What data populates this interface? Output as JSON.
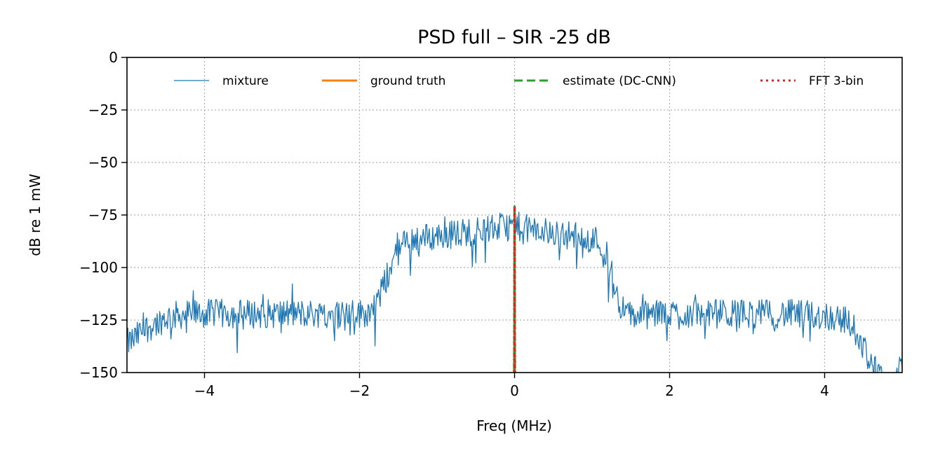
{
  "chart_data": {
    "type": "line",
    "title": "PSD full – SIR -25 dB",
    "xlabel": "Freq (MHz)",
    "ylabel": "dB re 1 mW",
    "xlim": [
      -5,
      5
    ],
    "ylim": [
      -150,
      0
    ],
    "x_ticks": [
      -4,
      -2,
      0,
      2,
      4
    ],
    "x_tick_labels": [
      "−4",
      "−2",
      "0",
      "2",
      "4"
    ],
    "y_ticks": [
      0,
      -25,
      -50,
      -75,
      -100,
      -125,
      -150
    ],
    "y_tick_labels": [
      "0",
      "−25",
      "−50",
      "−75",
      "−100",
      "−125",
      "−150"
    ],
    "grid": true,
    "grid_style": "dotted",
    "legend_position": "top",
    "series": [
      {
        "name": "mixture",
        "color": "#1f77b4",
        "style": "solid",
        "shape": {
          "points": [
            [
              -5.0,
              -136
            ],
            [
              -4.9,
              -134
            ],
            [
              -4.8,
              -130
            ],
            [
              -4.7,
              -128
            ],
            [
              -4.6,
              -126
            ],
            [
              -4.5,
              -124
            ],
            [
              -4.4,
              -123
            ],
            [
              -4.2,
              -122
            ],
            [
              -4.0,
              -122
            ],
            [
              -3.5,
              -122
            ],
            [
              -3.0,
              -122
            ],
            [
              -2.5,
              -122
            ],
            [
              -2.0,
              -122
            ],
            [
              -1.85,
              -121
            ],
            [
              -1.8,
              -118
            ],
            [
              -1.7,
              -110
            ],
            [
              -1.6,
              -100
            ],
            [
              -1.5,
              -92
            ],
            [
              -1.4,
              -88
            ],
            [
              -1.3,
              -86
            ],
            [
              -1.2,
              -86
            ],
            [
              -1.0,
              -85
            ],
            [
              -0.8,
              -84
            ],
            [
              -0.6,
              -83
            ],
            [
              -0.4,
              -82
            ],
            [
              -0.2,
              -81
            ],
            [
              0.0,
              -80
            ],
            [
              0.2,
              -82
            ],
            [
              0.4,
              -83
            ],
            [
              0.6,
              -84
            ],
            [
              0.8,
              -85
            ],
            [
              1.0,
              -86
            ],
            [
              1.1,
              -88
            ],
            [
              1.2,
              -100
            ],
            [
              1.3,
              -112
            ],
            [
              1.4,
              -120
            ],
            [
              1.5,
              -123
            ],
            [
              2.0,
              -122
            ],
            [
              2.5,
              -122
            ],
            [
              3.0,
              -122
            ],
            [
              3.5,
              -122
            ],
            [
              4.0,
              -123
            ],
            [
              4.2,
              -124
            ],
            [
              4.3,
              -126
            ],
            [
              4.4,
              -130
            ],
            [
              4.5,
              -138
            ],
            [
              4.6,
              -145
            ],
            [
              4.7,
              -152
            ],
            [
              4.8,
              -158
            ],
            [
              4.9,
              -153
            ],
            [
              5.0,
              -148
            ]
          ],
          "noise_db": 7,
          "n_samples": 900
        }
      },
      {
        "name": "ground truth",
        "color": "#ff7f0e",
        "style": "solid",
        "x_range": [
          -0.005,
          0.005
        ],
        "peak_db": -71
      },
      {
        "name": "estimate (DC-CNN)",
        "color": "#2ca02c",
        "style": "dashed",
        "x_range": [
          -0.005,
          0.005
        ],
        "peak_db": -71
      },
      {
        "name": "FFT 3-bin",
        "color": "#d62728",
        "style": "dotted",
        "x_range": [
          -0.005,
          0.005
        ],
        "peak_db": -71
      }
    ]
  }
}
